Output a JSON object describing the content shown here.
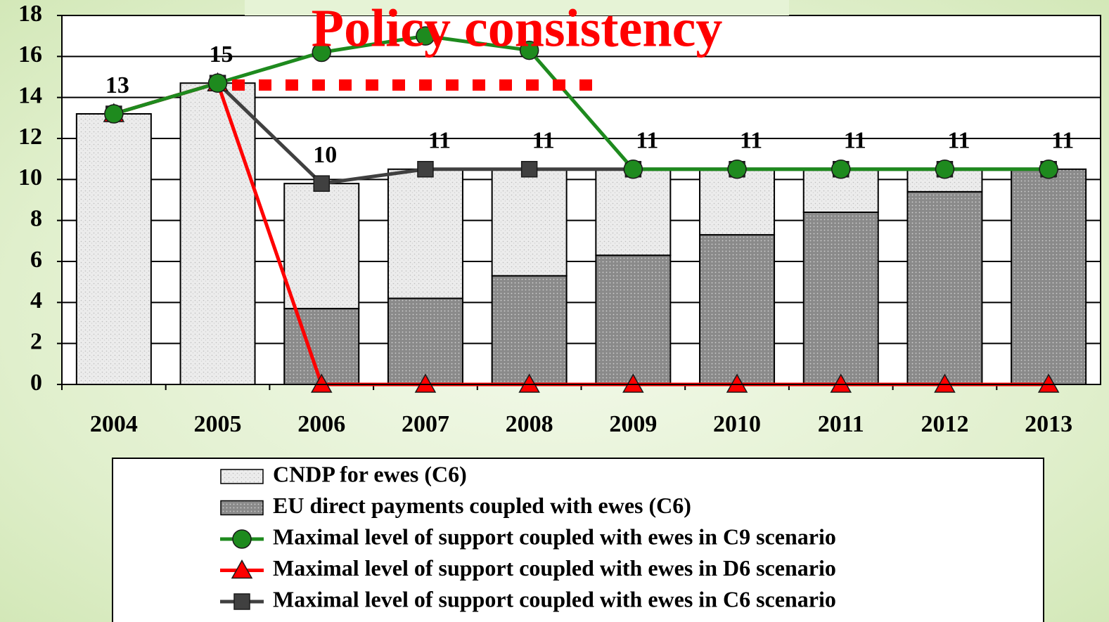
{
  "chart_data": {
    "type": "bar",
    "title": "Policy consistency",
    "categories": [
      "2004",
      "2005",
      "2006",
      "2007",
      "2008",
      "2009",
      "2010",
      "2011",
      "2012",
      "2013"
    ],
    "series": [
      {
        "name": "CNDP for ewes (C6)",
        "type": "bar",
        "color": "#e6e6e6",
        "values": [
          13.2,
          14.7,
          6.1,
          6.3,
          5.2,
          4.2,
          3.2,
          2.1,
          1.1,
          0
        ]
      },
      {
        "name": "EU direct payments coupled with ewes (C6)",
        "type": "bar",
        "color": "#8c8c8c",
        "values": [
          0,
          0,
          3.7,
          4.2,
          5.3,
          6.3,
          7.3,
          8.4,
          9.4,
          10.5
        ]
      },
      {
        "name": "Maximal level of support coupled with ewes in C9 scenario",
        "type": "line",
        "color": "#1e8a1e",
        "marker": "circle",
        "values": [
          13.2,
          14.7,
          16.2,
          17,
          16.3,
          10.5,
          10.5,
          10.5,
          10.5,
          10.5
        ]
      },
      {
        "name": "Maximal level of support coupled with ewes in D6 scenario",
        "type": "line",
        "color": "#ff0000",
        "marker": "triangle",
        "values": [
          13.2,
          14.7,
          0,
          0,
          0,
          0,
          0,
          0,
          0,
          0
        ]
      },
      {
        "name": "Maximal level of support coupled with ewes in C6 scenario",
        "type": "line",
        "color": "#404040",
        "marker": "square",
        "values": [
          13.2,
          14.7,
          9.8,
          10.5,
          10.5,
          10.5,
          10.5,
          10.5,
          10.5,
          10.5
        ],
        "value_labels": [
          "13",
          "15",
          "10",
          "11",
          "11",
          "11",
          "11",
          "11",
          "11",
          "11"
        ]
      }
    ],
    "ylim": [
      0,
      18
    ],
    "yticks": [
      0,
      2,
      4,
      6,
      8,
      10,
      12,
      14,
      16,
      18
    ],
    "grid": true
  }
}
